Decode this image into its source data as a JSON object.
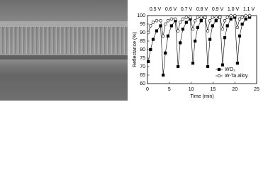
{
  "chart_data": {
    "type": "line",
    "x": [
      0.2,
      0.7,
      1.3,
      2.1,
      3.0,
      3.6,
      4.1,
      4.7,
      5.5,
      6.4,
      7.0,
      7.5,
      8.1,
      8.9,
      9.8,
      10.4,
      10.9,
      11.5,
      12.3,
      13.2,
      13.8,
      14.3,
      14.9,
      15.7,
      16.6,
      17.2,
      17.7,
      18.3,
      19.1,
      20.0,
      20.6,
      21.1,
      21.7,
      22.5,
      23.4
    ],
    "series": [
      {
        "name": "WO₃",
        "color": "#000000",
        "marker": "filled-square",
        "values": [
          73,
          80,
          86,
          91,
          94,
          65,
          78,
          88,
          94,
          97,
          70,
          84,
          92,
          96,
          98,
          72,
          85,
          93,
          97,
          99,
          70,
          86,
          94,
          97,
          99,
          71,
          87,
          94,
          98,
          99,
          72,
          88,
          95,
          98,
          99
        ]
      },
      {
        "name": "W-Ta alloy",
        "color": "#000000",
        "marker": "open-circle",
        "values": [
          90,
          94,
          96,
          97,
          97,
          88,
          95,
          97,
          98,
          98,
          91,
          96,
          98,
          99,
          99,
          92,
          97,
          99,
          99,
          99,
          91,
          97,
          99,
          99,
          99,
          92,
          97,
          99,
          100,
          100,
          93,
          98,
          99,
          100,
          100
        ]
      }
    ],
    "annotations": [
      "0.5 V",
      "0.6 V",
      "0.7 V",
      "0.8 V",
      "0.9 V",
      "1.0 V",
      "1.1 V"
    ],
    "xlabel": "Time (min)",
    "ylabel": "Reflectance (%)",
    "xlim": [
      0,
      25
    ],
    "xticks": [
      0,
      5,
      10,
      15,
      20,
      25
    ],
    "ylim": [
      60,
      100
    ],
    "yticks": [
      60,
      65,
      70,
      75,
      80,
      85,
      90,
      95,
      100
    ],
    "legend": "lower right"
  }
}
